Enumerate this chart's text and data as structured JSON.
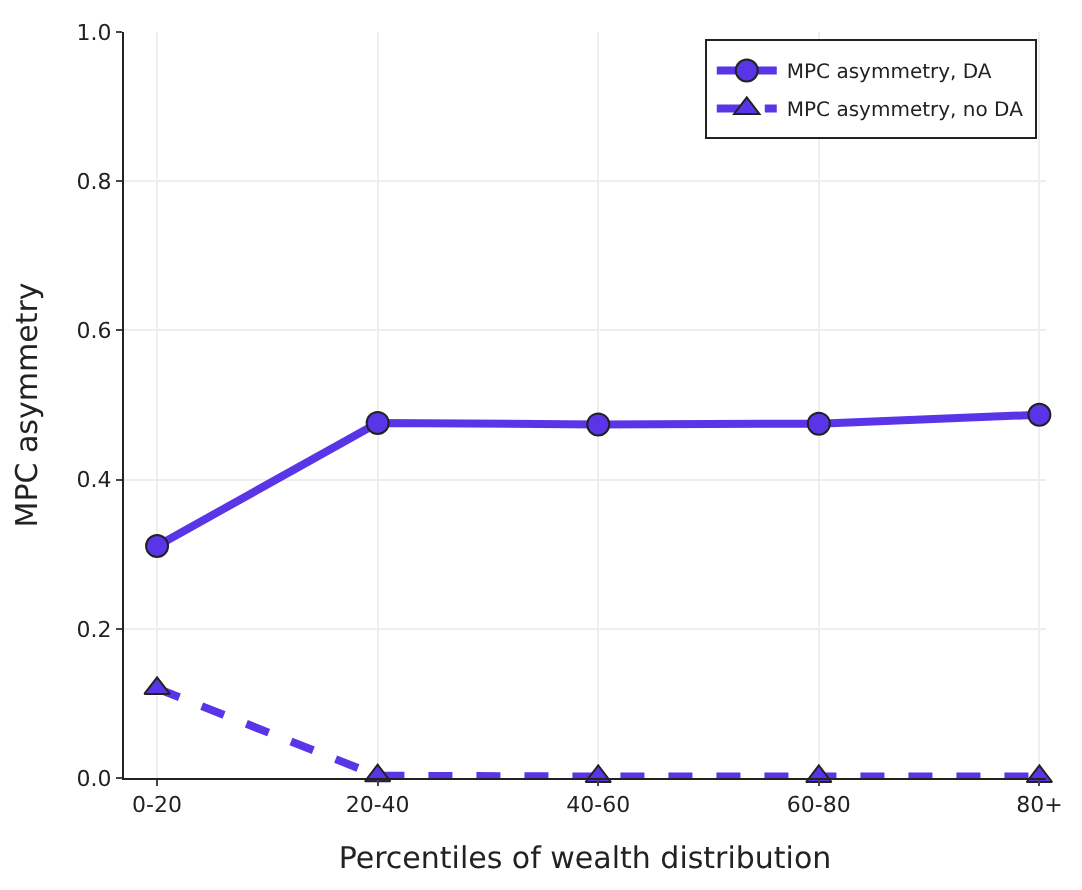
{
  "chart_data": {
    "type": "line",
    "xlabel": "Percentiles of wealth distribution",
    "ylabel": "MPC asymmetry",
    "categories": [
      "0-20",
      "20-40",
      "40-60",
      "60-80",
      "80+"
    ],
    "series": [
      {
        "name": "MPC asymmetry, DA",
        "color": "#5a35e8",
        "marker": "circle",
        "line_style": "solid",
        "values": [
          0.311,
          0.476,
          0.474,
          0.475,
          0.487
        ]
      },
      {
        "name": "MPC asymmetry, no DA",
        "color": "#5a35e8",
        "marker": "triangle",
        "line_style": "dashed",
        "values": [
          0.12,
          0.003,
          0.002,
          0.002,
          0.002
        ]
      }
    ],
    "ylim": [
      0,
      1
    ],
    "yticks": [
      {
        "value": 0,
        "label": "0.0"
      },
      0.2,
      0.4,
      0.6,
      0.8,
      {
        "value": 1,
        "label": "1.0"
      }
    ],
    "grid": true,
    "legend": "top right"
  }
}
